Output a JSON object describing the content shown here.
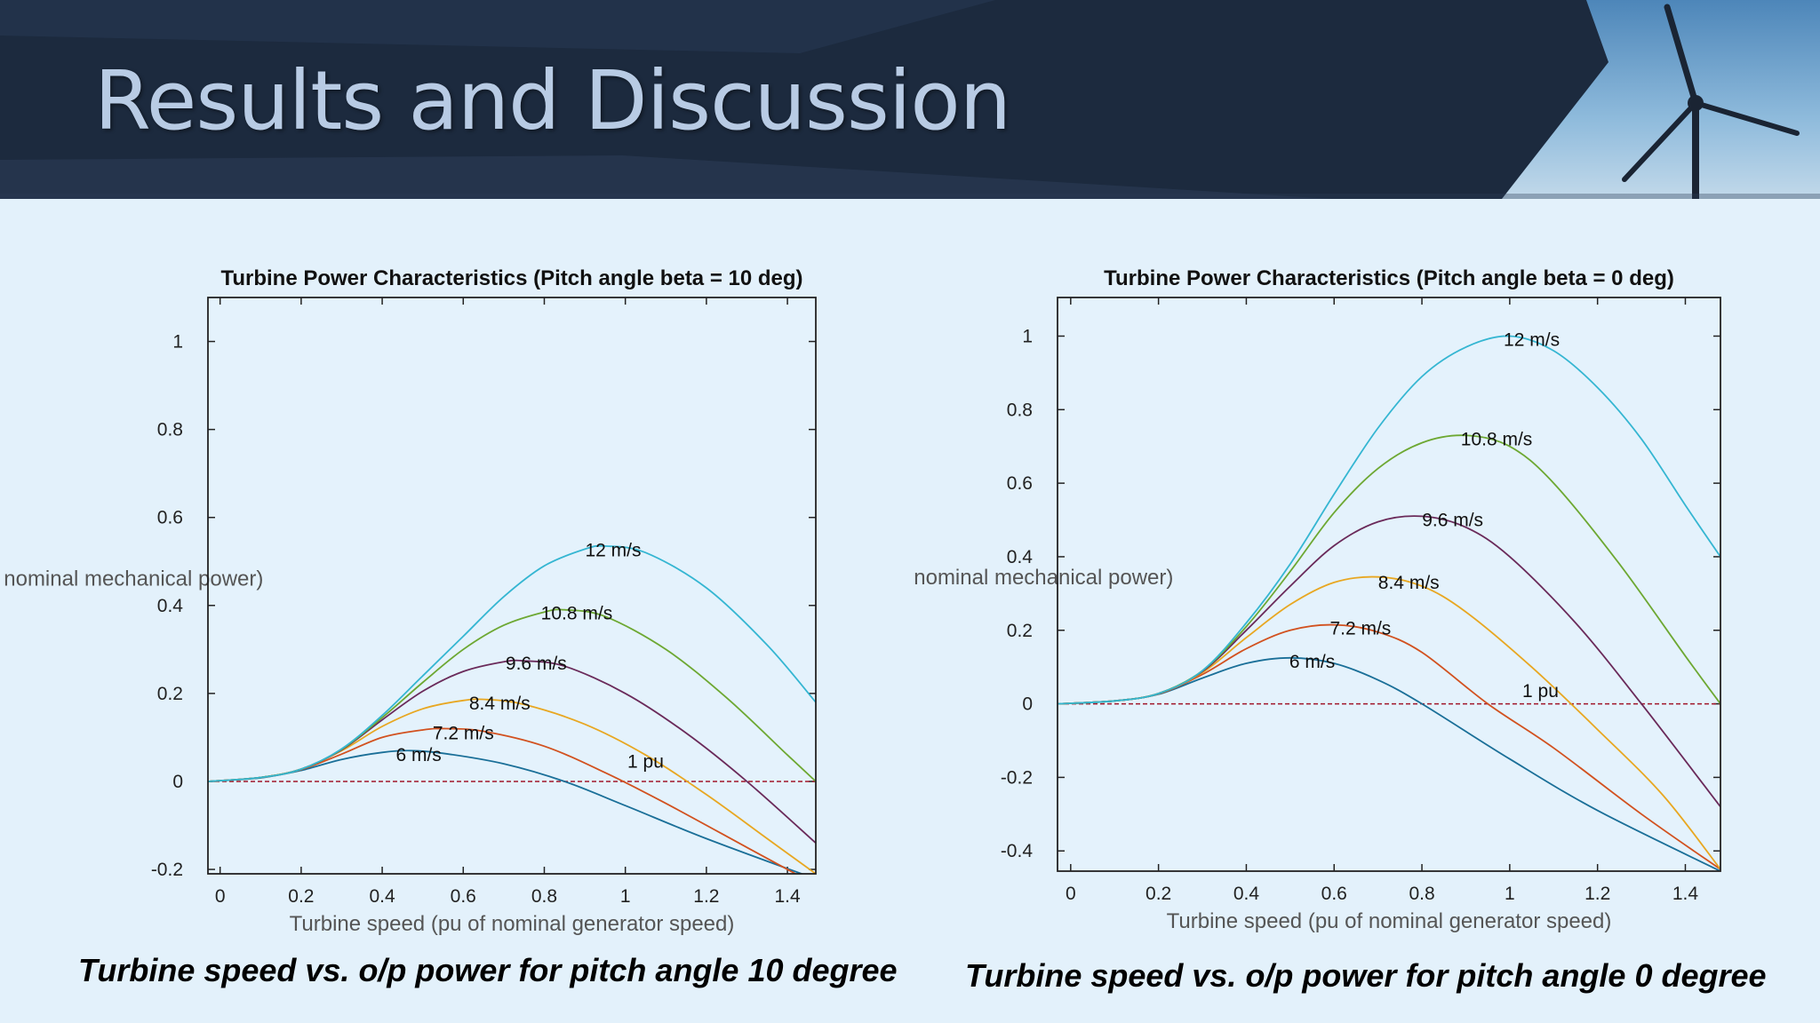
{
  "slide": {
    "title": "Results and Discussion",
    "caption_left": "Turbine speed vs. o/p power for pitch angle 10 degree",
    "caption_right": "Turbine speed vs. o/p power for pitch angle 0 degree"
  },
  "colors": {
    "banner_dark": "#1c2a3e",
    "background": "#e3f1fb",
    "reference_line": "#a0162a"
  },
  "chart_data": [
    {
      "type": "line",
      "title": "Turbine Power Characteristics (Pitch angle beta = 10 deg)",
      "xlabel": "Turbine speed (pu of nominal generator speed)",
      "ylabel": "Turbine output power (pu of nominal mechanical power)",
      "xlim": [
        -0.03,
        1.47
      ],
      "ylim": [
        -0.21,
        1.1
      ],
      "xticks": [
        0,
        0.2,
        0.4,
        0.6,
        0.8,
        1,
        1.2,
        1.4
      ],
      "xtick_labels": [
        "0",
        "0.2",
        "0.4",
        "0.6",
        "0.8",
        "1",
        "1.2",
        "1.4"
      ],
      "yticks": [
        -0.2,
        0,
        0.2,
        0.4,
        0.6,
        0.8,
        1
      ],
      "ytick_labels": [
        "-0.2",
        "0",
        "0.2",
        "0.4",
        "0.6",
        "0.8",
        "1"
      ],
      "grid": false,
      "reference_line": {
        "y": 0,
        "label": "1 pu",
        "label_x": 1.05,
        "label_y": 0.045
      },
      "series": [
        {
          "name": "6 m/s",
          "color": "#1a6f98",
          "label_x": 0.49,
          "label_y": 0.06,
          "x": [
            -0.03,
            0.1,
            0.2,
            0.3,
            0.4,
            0.47,
            0.55,
            0.7,
            0.85,
            1.0,
            1.2,
            1.45
          ],
          "y": [
            0,
            0.008,
            0.025,
            0.05,
            0.066,
            0.07,
            0.064,
            0.04,
            0.0,
            -0.055,
            -0.13,
            -0.215
          ]
        },
        {
          "name": "7.2 m/s",
          "color": "#d2511f",
          "label_x": 0.6,
          "label_y": 0.11,
          "x": [
            -0.03,
            0.1,
            0.2,
            0.3,
            0.4,
            0.5,
            0.56,
            0.65,
            0.8,
            0.95,
            1.1,
            1.3,
            1.42
          ],
          "y": [
            0,
            0.009,
            0.027,
            0.062,
            0.1,
            0.117,
            0.12,
            0.114,
            0.08,
            0.02,
            -0.05,
            -0.15,
            -0.21
          ]
        },
        {
          "name": "8.4 m/s",
          "color": "#e8a721",
          "label_x": 0.69,
          "label_y": 0.178,
          "x": [
            -0.03,
            0.1,
            0.2,
            0.3,
            0.4,
            0.5,
            0.6,
            0.66,
            0.75,
            0.9,
            1.05,
            1.2,
            1.35,
            1.47
          ],
          "y": [
            0,
            0.009,
            0.028,
            0.07,
            0.125,
            0.165,
            0.184,
            0.186,
            0.175,
            0.13,
            0.06,
            -0.03,
            -0.13,
            -0.21
          ]
        },
        {
          "name": "9.6 m/s",
          "color": "#6a2a5a",
          "label_x": 0.78,
          "label_y": 0.268,
          "x": [
            -0.03,
            0.1,
            0.2,
            0.3,
            0.4,
            0.5,
            0.6,
            0.7,
            0.75,
            0.85,
            1.0,
            1.15,
            1.3,
            1.47
          ],
          "y": [
            0,
            0.009,
            0.028,
            0.072,
            0.14,
            0.205,
            0.25,
            0.272,
            0.274,
            0.262,
            0.2,
            0.11,
            0.0,
            -0.14
          ]
        },
        {
          "name": "10.8 m/s",
          "color": "#6da832",
          "label_x": 0.88,
          "label_y": 0.382,
          "x": [
            -0.03,
            0.1,
            0.2,
            0.3,
            0.4,
            0.5,
            0.6,
            0.7,
            0.8,
            0.85,
            0.95,
            1.1,
            1.25,
            1.4,
            1.47
          ],
          "y": [
            0,
            0.009,
            0.028,
            0.073,
            0.145,
            0.225,
            0.3,
            0.355,
            0.385,
            0.39,
            0.375,
            0.3,
            0.19,
            0.06,
            0.0
          ]
        },
        {
          "name": "12 m/s",
          "color": "#35b6d2",
          "label_x": 0.97,
          "label_y": 0.526,
          "x": [
            -0.03,
            0.1,
            0.2,
            0.3,
            0.4,
            0.5,
            0.6,
            0.7,
            0.8,
            0.9,
            0.95,
            1.05,
            1.2,
            1.35,
            1.47
          ],
          "y": [
            0,
            0.009,
            0.028,
            0.074,
            0.15,
            0.24,
            0.33,
            0.42,
            0.49,
            0.528,
            0.535,
            0.52,
            0.44,
            0.31,
            0.18
          ]
        }
      ]
    },
    {
      "type": "line",
      "title": "Turbine Power Characteristics (Pitch angle beta = 0 deg)",
      "xlabel": "Turbine speed (pu of nominal generator speed)",
      "ylabel": "Turbine output power (pu of nominal mechanical power)",
      "xlim": [
        -0.03,
        1.48
      ],
      "ylim": [
        -0.455,
        1.105
      ],
      "xticks": [
        0,
        0.2,
        0.4,
        0.6,
        0.8,
        1,
        1.2,
        1.4
      ],
      "xtick_labels": [
        "0",
        "0.2",
        "0.4",
        "0.6",
        "0.8",
        "1",
        "1.2",
        "1.4"
      ],
      "yticks": [
        -0.4,
        -0.2,
        0,
        0.2,
        0.4,
        0.6,
        0.8,
        1
      ],
      "ytick_labels": [
        "-0.4",
        "-0.2",
        "0",
        "0.2",
        "0.4",
        "0.6",
        "0.8",
        "1"
      ],
      "grid": false,
      "reference_line": {
        "y": 0,
        "label": "1 pu",
        "label_x": 1.07,
        "label_y": 0.035
      },
      "series": [
        {
          "name": "6 m/s",
          "color": "#1a6f98",
          "label_x": 0.55,
          "label_y": 0.115,
          "x": [
            -0.03,
            0.1,
            0.2,
            0.3,
            0.4,
            0.5,
            0.6,
            0.7,
            0.8,
            1.0,
            1.2,
            1.48
          ],
          "y": [
            0,
            0.008,
            0.026,
            0.07,
            0.11,
            0.125,
            0.11,
            0.065,
            0.0,
            -0.15,
            -0.29,
            -0.455
          ]
        },
        {
          "name": "7.2 m/s",
          "color": "#d2511f",
          "label_x": 0.66,
          "label_y": 0.205,
          "x": [
            -0.03,
            0.1,
            0.2,
            0.3,
            0.4,
            0.5,
            0.6,
            0.7,
            0.8,
            0.95,
            1.1,
            1.3,
            1.48
          ],
          "y": [
            0,
            0.008,
            0.027,
            0.08,
            0.15,
            0.2,
            0.215,
            0.195,
            0.14,
            0.0,
            -0.12,
            -0.3,
            -0.45
          ]
        },
        {
          "name": "8.4 m/s",
          "color": "#e8a721",
          "label_x": 0.77,
          "label_y": 0.33,
          "x": [
            -0.03,
            0.1,
            0.2,
            0.3,
            0.4,
            0.5,
            0.6,
            0.7,
            0.8,
            0.9,
            1.05,
            1.2,
            1.35,
            1.48
          ],
          "y": [
            0,
            0.008,
            0.028,
            0.085,
            0.18,
            0.27,
            0.33,
            0.345,
            0.32,
            0.25,
            0.1,
            -0.07,
            -0.25,
            -0.45
          ]
        },
        {
          "name": "9.6 m/s",
          "color": "#6a2a5a",
          "label_x": 0.87,
          "label_y": 0.5,
          "x": [
            -0.03,
            0.1,
            0.2,
            0.3,
            0.4,
            0.5,
            0.6,
            0.7,
            0.8,
            0.9,
            1.0,
            1.15,
            1.3,
            1.48
          ],
          "y": [
            0,
            0.008,
            0.028,
            0.088,
            0.2,
            0.32,
            0.43,
            0.495,
            0.51,
            0.48,
            0.4,
            0.22,
            0.0,
            -0.28
          ]
        },
        {
          "name": "10.8 m/s",
          "color": "#6da832",
          "label_x": 0.97,
          "label_y": 0.72,
          "x": [
            -0.03,
            0.1,
            0.2,
            0.3,
            0.4,
            0.5,
            0.6,
            0.7,
            0.8,
            0.9,
            1.0,
            1.1,
            1.25,
            1.4,
            1.48
          ],
          "y": [
            0,
            0.008,
            0.028,
            0.09,
            0.21,
            0.36,
            0.52,
            0.64,
            0.71,
            0.73,
            0.7,
            0.6,
            0.38,
            0.13,
            0.0
          ]
        },
        {
          "name": "12 m/s",
          "color": "#35b6d2",
          "label_x": 1.05,
          "label_y": 0.99,
          "x": [
            -0.03,
            0.1,
            0.2,
            0.3,
            0.4,
            0.5,
            0.6,
            0.7,
            0.8,
            0.9,
            1.0,
            1.1,
            1.2,
            1.3,
            1.4,
            1.48
          ],
          "y": [
            0,
            0.008,
            0.028,
            0.09,
            0.22,
            0.38,
            0.57,
            0.75,
            0.89,
            0.97,
            1.0,
            0.96,
            0.86,
            0.72,
            0.54,
            0.4
          ]
        }
      ]
    }
  ]
}
